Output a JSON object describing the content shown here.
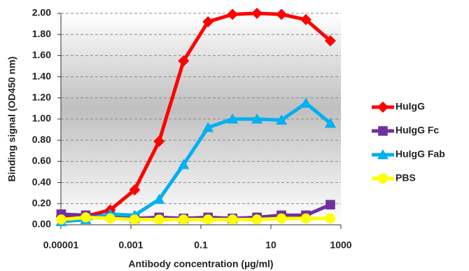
{
  "chart_data": {
    "type": "line",
    "x_label": "Antibody concentration (µg/ml)",
    "y_label": "Binding signal (OD450 nm)",
    "x": [
      1.02e-05,
      5.12e-05,
      0.000256,
      0.00128,
      0.0064,
      0.032,
      0.16,
      0.8,
      4,
      20,
      100,
      500
    ],
    "series": [
      {
        "name": "HuIgG",
        "color": "#ff0000",
        "marker": "diamond",
        "values": [
          0.08,
          0.08,
          0.14,
          0.33,
          0.79,
          1.55,
          1.92,
          1.99,
          2.0,
          1.99,
          1.94,
          1.74
        ]
      },
      {
        "name": "HuIgG Fc",
        "color": "#7030a0",
        "marker": "square",
        "values": [
          0.1,
          0.09,
          0.08,
          0.06,
          0.07,
          0.06,
          0.07,
          0.06,
          0.07,
          0.09,
          0.09,
          0.19
        ]
      },
      {
        "name": "HuIgG Fab",
        "color": "#00b0f0",
        "marker": "triangle",
        "values": [
          0.03,
          0.05,
          0.1,
          0.09,
          0.24,
          0.57,
          0.92,
          1.0,
          1.0,
          0.99,
          1.15,
          0.96
        ]
      },
      {
        "name": "PBS",
        "color": "#ffff00",
        "marker": "circle",
        "values": [
          0.05,
          0.07,
          0.06,
          0.05,
          0.05,
          0.05,
          0.05,
          0.05,
          0.05,
          0.06,
          0.06,
          0.06
        ]
      }
    ],
    "xscale": "log",
    "xlim": [
      1e-05,
      1000
    ],
    "xticks": [
      {
        "value": 1e-05,
        "label": "0.00001"
      },
      0.001,
      0.1,
      10,
      1000
    ],
    "ylim": [
      0,
      2
    ],
    "yticks": [
      {
        "value": 0,
        "label": "0.00"
      },
      {
        "value": 0.2,
        "label": "0.20"
      },
      {
        "value": 0.4,
        "label": "0.40"
      },
      {
        "value": 0.6,
        "label": "0.60"
      },
      {
        "value": 0.8,
        "label": "0.80"
      },
      {
        "value": 1,
        "label": "1.00"
      },
      {
        "value": 1.2,
        "label": "1.20"
      },
      {
        "value": 1.4,
        "label": "1.40"
      },
      {
        "value": 1.6,
        "label": "1.60"
      },
      {
        "value": 1.8,
        "label": "1.80"
      },
      {
        "value": 2,
        "label": "2.00"
      }
    ],
    "grid": true,
    "legend": "right"
  }
}
